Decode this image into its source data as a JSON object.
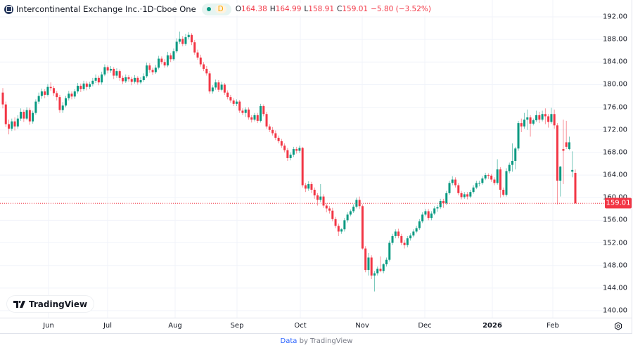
{
  "header": {
    "symbol_name": "Intercontinental Exchange Inc.",
    "interval": "1D",
    "exchange": "Cboe One",
    "separator": " · ",
    "delay_badge": "D",
    "open_label": "O",
    "open": "164.38",
    "high_label": "H",
    "high": "164.99",
    "low_label": "L",
    "low": "158.91",
    "close_label": "C",
    "close": "159.01",
    "change": "−5.80 (−3.52%)"
  },
  "last_price_label": "159.01",
  "branding": {
    "logo_text": "TradingView"
  },
  "footer": {
    "data_link": "Data",
    "by_text": " by TradingView"
  },
  "colors": {
    "up": "#089981",
    "down": "#F23645",
    "grid": "#f0f3fa",
    "last_price": "#F23645"
  },
  "chart_data": {
    "type": "candlestick",
    "title": "Intercontinental Exchange Inc. · 1D · Cboe One",
    "ylim": [
      140,
      192
    ],
    "y_ticks": [
      "192.00",
      "188.00",
      "184.00",
      "180.00",
      "176.00",
      "172.00",
      "168.00",
      "164.00",
      "160.00",
      "156.00",
      "152.00",
      "148.00",
      "144.00",
      "140.00"
    ],
    "x_tick_labels": [
      "Jun",
      "Jul",
      "Aug",
      "Sep",
      "Oct",
      "Nov",
      "Dec",
      "2026",
      "Feb"
    ],
    "grid": true,
    "last_price": 159.01,
    "ohlc": [
      [
        178.6,
        179.4,
        175.8,
        176.5
      ],
      [
        176.5,
        177.0,
        172.5,
        173.0
      ],
      [
        173.0,
        173.8,
        171.2,
        172.2
      ],
      [
        172.2,
        174.0,
        171.8,
        173.5
      ],
      [
        173.5,
        174.2,
        171.9,
        172.6
      ],
      [
        172.6,
        174.6,
        172.2,
        174.0
      ],
      [
        174.0,
        175.8,
        173.6,
        175.2
      ],
      [
        175.2,
        175.6,
        173.4,
        174.0
      ],
      [
        174.0,
        176.0,
        173.7,
        175.5
      ],
      [
        175.5,
        175.9,
        172.9,
        173.5
      ],
      [
        173.5,
        175.4,
        173.1,
        175.0
      ],
      [
        175.0,
        177.4,
        174.7,
        177.0
      ],
      [
        177.0,
        178.6,
        176.6,
        178.0
      ],
      [
        178.0,
        179.3,
        177.5,
        178.8
      ],
      [
        178.8,
        179.2,
        177.6,
        178.2
      ],
      [
        178.2,
        180.1,
        177.9,
        179.6
      ],
      [
        179.6,
        180.4,
        178.9,
        179.4
      ],
      [
        179.4,
        179.8,
        178.0,
        178.5
      ],
      [
        178.5,
        178.9,
        177.2,
        177.8
      ],
      [
        177.8,
        178.2,
        175.0,
        175.5
      ],
      [
        175.5,
        176.9,
        175.0,
        176.3
      ],
      [
        176.3,
        178.0,
        176.0,
        177.6
      ],
      [
        177.6,
        178.9,
        177.2,
        178.4
      ],
      [
        178.4,
        178.8,
        177.4,
        177.9
      ],
      [
        177.9,
        179.2,
        177.5,
        178.8
      ],
      [
        178.8,
        180.3,
        178.4,
        179.8
      ],
      [
        179.8,
        180.2,
        178.7,
        179.2
      ],
      [
        179.2,
        180.7,
        178.9,
        180.2
      ],
      [
        180.2,
        180.6,
        179.0,
        179.6
      ],
      [
        179.6,
        180.5,
        179.2,
        180.1
      ],
      [
        180.1,
        181.2,
        179.7,
        180.7
      ],
      [
        180.7,
        181.8,
        180.3,
        181.2
      ],
      [
        181.2,
        181.6,
        179.9,
        180.4
      ],
      [
        180.4,
        182.3,
        180.0,
        181.8
      ],
      [
        181.8,
        183.6,
        181.5,
        183.1
      ],
      [
        183.1,
        183.4,
        182.0,
        182.5
      ],
      [
        182.5,
        183.3,
        182.1,
        182.8
      ],
      [
        182.8,
        183.1,
        181.0,
        181.6
      ],
      [
        181.6,
        182.9,
        181.2,
        182.4
      ],
      [
        182.4,
        182.7,
        180.7,
        181.2
      ],
      [
        181.2,
        181.6,
        180.1,
        180.6
      ],
      [
        180.6,
        181.8,
        180.3,
        181.3
      ],
      [
        181.3,
        181.7,
        180.5,
        181.0
      ],
      [
        181.0,
        181.4,
        179.9,
        180.5
      ],
      [
        180.5,
        181.7,
        180.2,
        181.2
      ],
      [
        181.2,
        181.5,
        180.0,
        180.4
      ],
      [
        180.4,
        181.3,
        180.1,
        180.8
      ],
      [
        180.8,
        182.0,
        180.5,
        181.5
      ],
      [
        181.5,
        183.9,
        181.2,
        183.4
      ],
      [
        183.4,
        183.8,
        182.1,
        182.6
      ],
      [
        182.6,
        183.0,
        181.7,
        182.2
      ],
      [
        182.2,
        183.5,
        181.9,
        183.0
      ],
      [
        183.0,
        185.1,
        182.7,
        184.6
      ],
      [
        184.6,
        185.0,
        183.6,
        184.0
      ],
      [
        184.0,
        184.5,
        183.0,
        183.4
      ],
      [
        183.4,
        185.8,
        183.1,
        185.2
      ],
      [
        185.2,
        185.6,
        184.0,
        184.5
      ],
      [
        184.5,
        186.4,
        184.2,
        185.9
      ],
      [
        185.9,
        188.2,
        185.6,
        187.6
      ],
      [
        187.6,
        189.4,
        187.2,
        188.1
      ],
      [
        188.1,
        188.6,
        186.8,
        187.2
      ],
      [
        187.2,
        189.0,
        186.9,
        188.4
      ],
      [
        188.4,
        189.3,
        188.0,
        188.8
      ],
      [
        188.8,
        189.1,
        187.0,
        187.5
      ],
      [
        187.5,
        187.9,
        185.3,
        185.7
      ],
      [
        185.7,
        186.2,
        184.4,
        184.8
      ],
      [
        184.8,
        185.3,
        183.2,
        183.6
      ],
      [
        183.6,
        184.0,
        182.4,
        182.8
      ],
      [
        182.8,
        183.3,
        181.6,
        182.0
      ],
      [
        182.0,
        182.4,
        178.4,
        178.8
      ],
      [
        178.8,
        179.9,
        178.4,
        179.5
      ],
      [
        179.5,
        180.9,
        179.1,
        180.4
      ],
      [
        180.4,
        180.8,
        178.7,
        179.1
      ],
      [
        179.1,
        180.5,
        178.8,
        180.0
      ],
      [
        180.0,
        180.3,
        178.2,
        178.6
      ],
      [
        178.6,
        179.0,
        177.4,
        177.8
      ],
      [
        177.8,
        178.2,
        176.8,
        177.2
      ],
      [
        177.2,
        177.6,
        176.2,
        176.6
      ],
      [
        176.6,
        177.4,
        176.2,
        177.0
      ],
      [
        177.0,
        177.3,
        175.0,
        175.4
      ],
      [
        175.4,
        175.8,
        174.6,
        175.0
      ],
      [
        175.0,
        176.0,
        174.3,
        175.6
      ],
      [
        175.6,
        176.0,
        173.8,
        174.2
      ],
      [
        174.2,
        174.6,
        173.3,
        173.8
      ],
      [
        173.8,
        175.0,
        173.5,
        174.6
      ],
      [
        174.6,
        175.0,
        173.2,
        173.6
      ],
      [
        173.6,
        176.6,
        173.3,
        176.2
      ],
      [
        176.2,
        176.5,
        174.4,
        174.8
      ],
      [
        174.8,
        175.2,
        172.2,
        172.6
      ],
      [
        172.6,
        173.0,
        171.6,
        172.0
      ],
      [
        172.0,
        172.5,
        171.0,
        171.4
      ],
      [
        171.4,
        171.9,
        170.2,
        170.6
      ],
      [
        170.6,
        171.0,
        169.6,
        170.0
      ],
      [
        170.0,
        170.4,
        168.8,
        169.2
      ],
      [
        169.2,
        169.6,
        168.0,
        168.4
      ],
      [
        168.4,
        168.8,
        166.5,
        167.0
      ],
      [
        167.0,
        168.0,
        166.6,
        167.6
      ],
      [
        167.6,
        169.0,
        167.2,
        168.6
      ],
      [
        168.6,
        169.0,
        167.8,
        168.3
      ],
      [
        168.3,
        169.2,
        167.9,
        168.8
      ],
      [
        168.8,
        169.0,
        161.8,
        162.2
      ],
      [
        162.2,
        162.6,
        161.0,
        161.6
      ],
      [
        161.6,
        162.9,
        161.2,
        162.4
      ],
      [
        162.4,
        162.8,
        160.8,
        161.4
      ],
      [
        161.4,
        161.8,
        159.8,
        160.4
      ],
      [
        160.4,
        160.8,
        158.6,
        159.6
      ],
      [
        159.6,
        162.4,
        159.2,
        160.2
      ],
      [
        160.2,
        160.6,
        158.2,
        158.6
      ],
      [
        158.6,
        159.0,
        157.4,
        158.1
      ],
      [
        158.1,
        158.5,
        157.2,
        157.7
      ],
      [
        157.7,
        158.2,
        155.8,
        156.2
      ],
      [
        156.2,
        156.6,
        154.6,
        155.0
      ],
      [
        155.0,
        155.4,
        153.2,
        154.0
      ],
      [
        154.0,
        154.6,
        153.6,
        154.4
      ],
      [
        154.4,
        156.4,
        154.0,
        156.0
      ],
      [
        156.0,
        157.4,
        155.6,
        157.0
      ],
      [
        157.0,
        157.9,
        156.7,
        157.6
      ],
      [
        157.6,
        158.8,
        157.3,
        158.4
      ],
      [
        158.4,
        160.0,
        158.1,
        159.6
      ],
      [
        159.6,
        160.2,
        158.0,
        158.5
      ],
      [
        158.5,
        158.8,
        150.8,
        151.0
      ],
      [
        151.0,
        151.4,
        146.8,
        147.2
      ],
      [
        147.2,
        150.2,
        146.2,
        149.4
      ],
      [
        149.4,
        149.8,
        145.6,
        146.2
      ],
      [
        146.2,
        147.0,
        143.4,
        146.6
      ],
      [
        146.6,
        147.8,
        146.2,
        147.4
      ],
      [
        147.4,
        149.6,
        146.8,
        147.0
      ],
      [
        147.0,
        148.4,
        146.6,
        148.2
      ],
      [
        148.2,
        149.4,
        147.8,
        149.0
      ],
      [
        149.0,
        152.4,
        148.7,
        152.0
      ],
      [
        152.0,
        153.6,
        151.6,
        153.2
      ],
      [
        153.2,
        154.4,
        152.8,
        154.0
      ],
      [
        154.0,
        154.5,
        152.8,
        153.2
      ],
      [
        153.2,
        153.6,
        151.6,
        152.0
      ],
      [
        152.0,
        152.5,
        151.0,
        151.6
      ],
      [
        151.6,
        153.2,
        151.2,
        152.8
      ],
      [
        152.8,
        153.7,
        152.4,
        153.3
      ],
      [
        153.3,
        154.4,
        153.0,
        154.0
      ],
      [
        154.0,
        155.0,
        153.7,
        154.6
      ],
      [
        154.6,
        156.2,
        154.3,
        155.8
      ],
      [
        155.8,
        157.4,
        155.5,
        157.0
      ],
      [
        157.0,
        158.0,
        156.7,
        157.6
      ],
      [
        157.6,
        158.0,
        156.0,
        156.4
      ],
      [
        156.4,
        157.6,
        156.0,
        157.2
      ],
      [
        157.2,
        158.5,
        156.9,
        158.1
      ],
      [
        158.1,
        158.7,
        157.5,
        158.3
      ],
      [
        158.3,
        159.8,
        158.0,
        159.4
      ],
      [
        159.4,
        159.8,
        158.2,
        159.0
      ],
      [
        159.0,
        161.2,
        158.7,
        160.8
      ],
      [
        160.8,
        163.0,
        160.5,
        162.6
      ],
      [
        162.6,
        163.8,
        162.2,
        163.2
      ],
      [
        163.2,
        163.6,
        161.8,
        162.2
      ],
      [
        162.2,
        162.6,
        160.4,
        160.8
      ],
      [
        160.8,
        161.2,
        159.7,
        160.1
      ],
      [
        160.1,
        161.0,
        159.8,
        160.6
      ],
      [
        160.6,
        161.0,
        159.7,
        160.2
      ],
      [
        160.2,
        161.4,
        159.9,
        161.0
      ],
      [
        161.0,
        162.2,
        160.7,
        161.8
      ],
      [
        161.8,
        163.0,
        161.5,
        162.6
      ],
      [
        162.6,
        163.0,
        162.0,
        162.6
      ],
      [
        162.6,
        163.8,
        162.3,
        163.4
      ],
      [
        163.4,
        164.4,
        163.1,
        164.0
      ],
      [
        164.0,
        164.3,
        163.3,
        163.9
      ],
      [
        163.9,
        164.2,
        162.8,
        163.2
      ],
      [
        163.2,
        163.6,
        162.2,
        162.6
      ],
      [
        162.6,
        166.8,
        162.3,
        165.0
      ],
      [
        165.0,
        165.4,
        160.0,
        161.4
      ],
      [
        161.4,
        161.8,
        160.2,
        160.5
      ],
      [
        160.5,
        165.2,
        160.2,
        164.7
      ],
      [
        164.7,
        166.2,
        164.3,
        165.8
      ],
      [
        165.8,
        169.6,
        164.6,
        166.5
      ],
      [
        166.5,
        169.0,
        165.0,
        168.7
      ],
      [
        168.7,
        173.6,
        168.3,
        173.2
      ],
      [
        173.2,
        174.0,
        171.6,
        172.6
      ],
      [
        172.6,
        175.0,
        172.2,
        173.8
      ],
      [
        173.8,
        175.6,
        172.0,
        174.2
      ],
      [
        174.2,
        174.6,
        170.8,
        173.1
      ],
      [
        173.1,
        174.0,
        172.8,
        173.7
      ],
      [
        173.7,
        175.4,
        173.4,
        174.6
      ],
      [
        174.6,
        175.2,
        173.2,
        173.8
      ],
      [
        173.8,
        175.4,
        173.5,
        174.8
      ],
      [
        174.8,
        175.8,
        173.0,
        174.4
      ],
      [
        174.4,
        174.8,
        172.4,
        173.4
      ],
      [
        173.4,
        175.9,
        173.1,
        174.8
      ],
      [
        174.8,
        175.6,
        172.2,
        172.8
      ],
      [
        172.8,
        173.2,
        158.8,
        163.0
      ],
      [
        163.0,
        165.6,
        160.2,
        165.5
      ],
      [
        168.6,
        173.8,
        162.4,
        168.3
      ],
      [
        169.8,
        173.6,
        168.6,
        169.0
      ],
      [
        168.6,
        170.8,
        168.4,
        169.8
      ],
      [
        164.6,
        168.2,
        163.6,
        164.9
      ],
      [
        164.38,
        164.99,
        158.91,
        159.01
      ]
    ]
  }
}
